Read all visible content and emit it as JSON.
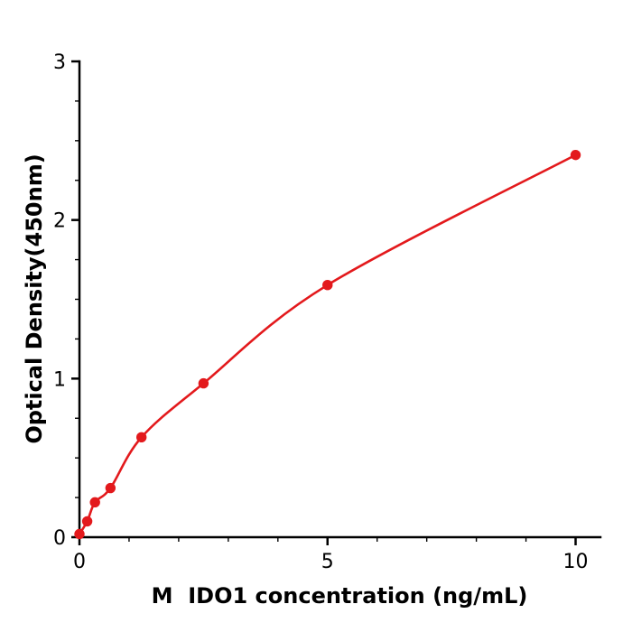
{
  "chart_data": {
    "type": "scatter",
    "subtype": "elisa-standard-curve-with-fit-line",
    "title": "",
    "xlabel": "M  IDO1 concentration (ng/mL)",
    "ylabel": "Optical Density(450nm)",
    "x": [
      0,
      0.156,
      0.313,
      0.625,
      1.25,
      2.5,
      5,
      10
    ],
    "y": [
      0.02,
      0.1,
      0.22,
      0.31,
      0.63,
      0.97,
      1.59,
      2.41
    ],
    "xlim": [
      0,
      10.5
    ],
    "ylim": [
      0,
      3
    ],
    "x_ticks": [
      0,
      5,
      10
    ],
    "y_ticks": [
      0,
      1,
      2,
      3
    ],
    "x_minor_step": 1,
    "y_minor_step": 0.25,
    "grid": false,
    "legend": null,
    "line_color": "#e3191c",
    "marker_color": "#e3191c",
    "axis_color": "#000000",
    "background_color": "#ffffff"
  }
}
